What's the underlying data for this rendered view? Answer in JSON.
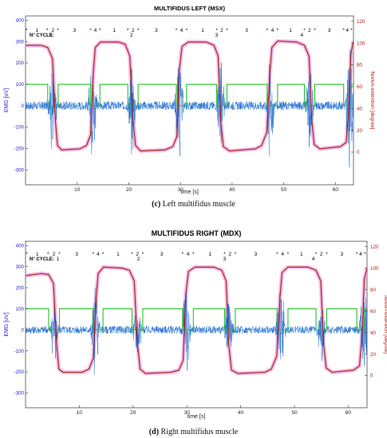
{
  "captions": [
    {
      "label": "(c)",
      "text": "Left multifidus muscle"
    },
    {
      "label": "(d)",
      "text": "Right multifidus muscle"
    }
  ],
  "colors": {
    "emg": "#1f6fd0",
    "angle": "#a11f12",
    "phase": "#23c223",
    "envelope": "#f0a8e0",
    "left_axis_text": "#2222cc",
    "right_axis_text": "#b01c0f"
  },
  "chart_data": [
    {
      "type": "line",
      "title": "MULTIFIDUS LEFT (MSX)",
      "xlabel": "time [s]",
      "ylabel_left": "EMG [uV]",
      "ylabel_right": "flexion-extention [degree]",
      "xlim": [
        0,
        63.5
      ],
      "ylim_left": [
        -370,
        420
      ],
      "ylim_right": [
        -30,
        125
      ],
      "x_ticks": [
        10,
        20,
        30,
        40,
        50,
        60
      ],
      "y_left_ticks": [
        -300,
        -200,
        -100,
        0,
        100,
        200,
        300,
        400
      ],
      "y_right_ticks": [
        0,
        20,
        40,
        60,
        80,
        100,
        120
      ],
      "cycle_label": "N° CYCLE:",
      "cycles": [
        {
          "label": "1",
          "x": 5.0
        },
        {
          "label": "2",
          "x": 20.5
        },
        {
          "label": "3",
          "x": 37.0
        },
        {
          "label": "4",
          "x": 53.5
        }
      ],
      "phase_labels": [
        {
          "text": "*",
          "x": 0.2
        },
        {
          "text": "1",
          "x": 2.2
        },
        {
          "text": "*",
          "x": 4.2
        },
        {
          "text": "2",
          "x": 5.3
        },
        {
          "text": "*",
          "x": 6.3
        },
        {
          "text": "3",
          "x": 9.5
        },
        {
          "text": "*",
          "x": 12.6
        },
        {
          "text": "4",
          "x": 13.5
        },
        {
          "text": "*",
          "x": 14.4
        },
        {
          "text": "1",
          "x": 17.2
        },
        {
          "text": "*",
          "x": 19.8
        },
        {
          "text": "2",
          "x": 20.8
        },
        {
          "text": "*",
          "x": 21.8
        },
        {
          "text": "3",
          "x": 25.3
        },
        {
          "text": "*",
          "x": 29.2
        },
        {
          "text": "4",
          "x": 30.2
        },
        {
          "text": "*",
          "x": 31.2
        },
        {
          "text": "1",
          "x": 34.3
        },
        {
          "text": "*",
          "x": 37.0
        },
        {
          "text": "2",
          "x": 38.0
        },
        {
          "text": "*",
          "x": 39.0
        },
        {
          "text": "3",
          "x": 42.8
        },
        {
          "text": "*",
          "x": 46.8
        },
        {
          "text": "4",
          "x": 47.8
        },
        {
          "text": "*",
          "x": 48.8
        },
        {
          "text": "1",
          "x": 51.3
        },
        {
          "text": "*",
          "x": 54.0
        },
        {
          "text": "2",
          "x": 55.0
        },
        {
          "text": "*",
          "x": 56.0
        },
        {
          "text": "3",
          "x": 58.8
        },
        {
          "text": "*",
          "x": 61.6
        },
        {
          "text": "4",
          "x": 62.3
        },
        {
          "text": "*",
          "x": 63.1
        }
      ],
      "angle_series": {
        "x": [
          0,
          3.0,
          4.3,
          5.2,
          5.8,
          6.2,
          7.0,
          10.5,
          11.8,
          12.6,
          13.1,
          13.5,
          14.5,
          18.0,
          19.3,
          20.2,
          20.8,
          21.3,
          22.3,
          27.0,
          28.5,
          29.3,
          29.8,
          30.3,
          31.5,
          35.0,
          36.5,
          37.3,
          37.8,
          38.3,
          39.5,
          44.5,
          45.7,
          46.7,
          47.3,
          47.7,
          48.8,
          52.5,
          54.0,
          54.9,
          55.4,
          55.9,
          57.0,
          61.0,
          62.1,
          62.6,
          63.0,
          63.5
        ],
        "y": [
          98,
          98,
          96,
          86,
          28,
          6,
          2,
          3,
          6,
          16,
          72,
          96,
          101,
          101,
          99,
          88,
          30,
          6,
          1,
          2,
          5,
          14,
          76,
          97,
          101,
          101,
          98,
          88,
          28,
          5,
          1,
          3,
          6,
          18,
          72,
          96,
          102,
          101,
          98,
          88,
          30,
          7,
          3,
          5,
          9,
          40,
          90,
          102
        ]
      },
      "phase_series": {
        "x": [
          0,
          4.3,
          4.3,
          6.3,
          6.3,
          12.6,
          12.6,
          14.4,
          14.4,
          19.8,
          19.8,
          21.8,
          21.8,
          29.2,
          29.2,
          31.2,
          31.2,
          37.0,
          37.0,
          39.0,
          39.0,
          46.8,
          46.8,
          48.8,
          48.8,
          54.0,
          54.0,
          56.0,
          56.0,
          61.6,
          61.6,
          63.1,
          63.1,
          63.5
        ],
        "y": [
          100,
          100,
          0,
          0,
          100,
          100,
          0,
          0,
          100,
          100,
          0,
          0,
          100,
          100,
          0,
          0,
          100,
          100,
          0,
          0,
          100,
          100,
          0,
          0,
          100,
          100,
          0,
          0,
          100,
          100,
          0,
          0,
          100,
          100
        ]
      },
      "emg_bursts": [
        {
          "x": 5.2,
          "amp": 300
        },
        {
          "x": 13.0,
          "amp": 330
        },
        {
          "x": 20.6,
          "amp": 280
        },
        {
          "x": 29.7,
          "amp": 330
        },
        {
          "x": 37.8,
          "amp": 300
        },
        {
          "x": 47.3,
          "amp": 340
        },
        {
          "x": 55.0,
          "amp": 260
        },
        {
          "x": 62.8,
          "amp": 380
        }
      ],
      "emg_baseline_amp": 20
    },
    {
      "type": "line",
      "title": "MULTIFIDUS RIGHT (MDX)",
      "xlabel": "time [s]",
      "ylabel_left": "EMG [uV]",
      "ylabel_right": "flexion-extention [degree]",
      "xlim": [
        0,
        63.5
      ],
      "ylim_left": [
        -370,
        420
      ],
      "ylim_right": [
        -30,
        125
      ],
      "x_ticks": [
        10,
        20,
        30,
        40,
        50,
        60
      ],
      "y_left_ticks": [
        -300,
        -200,
        -100,
        0,
        100,
        200,
        300,
        400
      ],
      "y_right_ticks": [
        0,
        20,
        40,
        60,
        80,
        100,
        120
      ],
      "cycle_label": "N° CYCLE:",
      "cycles": [
        {
          "label": "1",
          "x": 6.0
        },
        {
          "label": "2",
          "x": 21.0
        },
        {
          "label": "3",
          "x": 37.0
        },
        {
          "label": "4",
          "x": 53.5
        }
      ],
      "phase_labels": [
        {
          "text": "*",
          "x": 0.2
        },
        {
          "text": "1",
          "x": 2.2
        },
        {
          "text": "*",
          "x": 4.2
        },
        {
          "text": "2",
          "x": 5.3
        },
        {
          "text": "*",
          "x": 6.3
        },
        {
          "text": "3",
          "x": 9.5
        },
        {
          "text": "*",
          "x": 12.6
        },
        {
          "text": "4",
          "x": 13.5
        },
        {
          "text": "*",
          "x": 14.4
        },
        {
          "text": "1",
          "x": 17.2
        },
        {
          "text": "*",
          "x": 19.8
        },
        {
          "text": "2",
          "x": 20.8
        },
        {
          "text": "*",
          "x": 21.8
        },
        {
          "text": "3",
          "x": 25.3
        },
        {
          "text": "*",
          "x": 29.2
        },
        {
          "text": "4",
          "x": 30.2
        },
        {
          "text": "*",
          "x": 31.2
        },
        {
          "text": "1",
          "x": 34.3
        },
        {
          "text": "*",
          "x": 37.0
        },
        {
          "text": "2",
          "x": 38.0
        },
        {
          "text": "*",
          "x": 39.0
        },
        {
          "text": "3",
          "x": 42.8
        },
        {
          "text": "*",
          "x": 46.8
        },
        {
          "text": "4",
          "x": 47.8
        },
        {
          "text": "*",
          "x": 48.8
        },
        {
          "text": "1",
          "x": 51.3
        },
        {
          "text": "*",
          "x": 54.0
        },
        {
          "text": "2",
          "x": 55.0
        },
        {
          "text": "*",
          "x": 56.0
        },
        {
          "text": "3",
          "x": 58.8
        },
        {
          "text": "*",
          "x": 61.6
        },
        {
          "text": "4",
          "x": 62.3
        },
        {
          "text": "*",
          "x": 63.1
        }
      ],
      "angle_series": {
        "x": [
          0,
          3.0,
          4.3,
          5.2,
          5.8,
          6.2,
          7.0,
          10.5,
          11.8,
          12.6,
          13.1,
          13.5,
          14.5,
          18.0,
          19.3,
          20.2,
          20.8,
          21.3,
          22.3,
          27.0,
          28.5,
          29.3,
          29.8,
          30.3,
          31.5,
          35.0,
          36.5,
          37.3,
          37.8,
          38.3,
          39.5,
          44.5,
          45.7,
          46.7,
          47.3,
          47.7,
          48.8,
          52.5,
          54.0,
          54.9,
          55.4,
          55.9,
          57.0,
          61.0,
          62.1,
          62.6,
          63.0,
          63.5
        ],
        "y": [
          93,
          95,
          94,
          86,
          28,
          6,
          3,
          3,
          6,
          16,
          70,
          95,
          101,
          100,
          98,
          88,
          30,
          6,
          2,
          3,
          5,
          14,
          76,
          97,
          101,
          101,
          98,
          88,
          28,
          5,
          2,
          3,
          6,
          18,
          72,
          96,
          101,
          101,
          98,
          88,
          30,
          7,
          3,
          5,
          9,
          40,
          90,
          100
        ]
      },
      "phase_series": {
        "x": [
          0,
          4.3,
          4.3,
          6.3,
          6.3,
          12.6,
          12.6,
          14.4,
          14.4,
          19.8,
          19.8,
          21.8,
          21.8,
          29.2,
          29.2,
          31.2,
          31.2,
          37.0,
          37.0,
          39.0,
          39.0,
          46.8,
          46.8,
          48.8,
          48.8,
          54.0,
          54.0,
          56.0,
          56.0,
          61.6,
          61.6,
          63.1,
          63.1,
          63.5
        ],
        "y": [
          100,
          100,
          0,
          0,
          100,
          100,
          0,
          0,
          100,
          100,
          0,
          0,
          100,
          100,
          0,
          0,
          100,
          100,
          0,
          0,
          100,
          100,
          0,
          0,
          100,
          100,
          0,
          0,
          100,
          100,
          0,
          0,
          100,
          100
        ]
      },
      "emg_bursts": [
        {
          "x": 5.4,
          "amp": 230
        },
        {
          "x": 13.0,
          "amp": 300
        },
        {
          "x": 20.8,
          "amp": 200
        },
        {
          "x": 29.8,
          "amp": 320
        },
        {
          "x": 37.8,
          "amp": 250
        },
        {
          "x": 47.4,
          "amp": 330
        },
        {
          "x": 55.0,
          "amp": 220
        },
        {
          "x": 62.9,
          "amp": 330
        }
      ],
      "emg_baseline_amp": 18
    }
  ]
}
